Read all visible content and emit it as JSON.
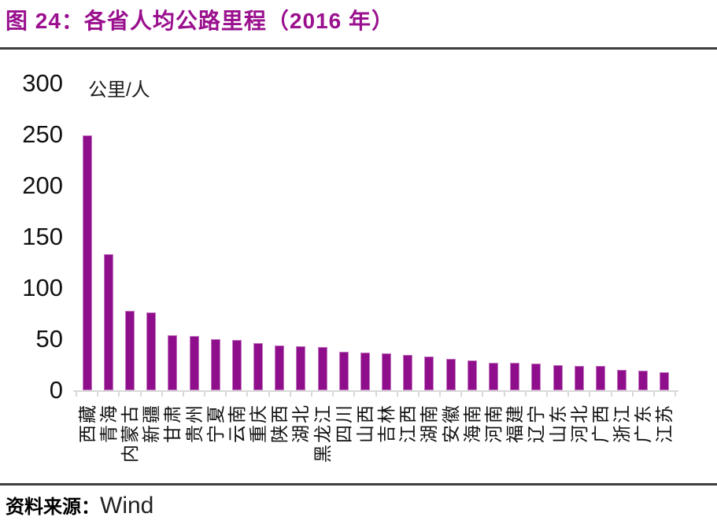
{
  "title": "图 24：各省人均公路里程（2016 年）",
  "source": {
    "label": "资料来源：",
    "value": "Wind"
  },
  "colors": {
    "title": "#9A108E",
    "bar_fill": "#8E0E8C",
    "bar_edge": "#C478C2",
    "axis": "#D9D9D9",
    "divider": "#3D3D3D"
  },
  "chart_data": {
    "type": "bar",
    "title": "各省人均公路里程（2016 年）",
    "unit_label": "公里/人",
    "categories": [
      "西藏",
      "青海",
      "内蒙古",
      "新疆",
      "甘肃",
      "贵州",
      "宁夏",
      "云南",
      "重庆",
      "陕西",
      "湖北",
      "黑龙江",
      "四川",
      "山西",
      "吉林",
      "江西",
      "湖南",
      "安徽",
      "海南",
      "河南",
      "福建",
      "辽宁",
      "山东",
      "河北",
      "广西",
      "浙江",
      "广东",
      "江苏"
    ],
    "values": [
      249,
      133,
      78,
      76,
      54,
      53,
      50,
      49,
      46,
      44,
      43,
      42,
      38,
      37,
      36,
      35,
      33,
      31,
      29,
      27,
      27,
      26,
      25,
      24,
      24,
      20,
      19,
      18
    ],
    "ylabel": "公里/人",
    "xlabel": "",
    "ylim": [
      0,
      300
    ],
    "yticks": [
      0,
      50,
      100,
      150,
      200,
      250,
      300
    ],
    "grid": false,
    "legend_position": "none",
    "x_tick_label_rotation": -90
  }
}
